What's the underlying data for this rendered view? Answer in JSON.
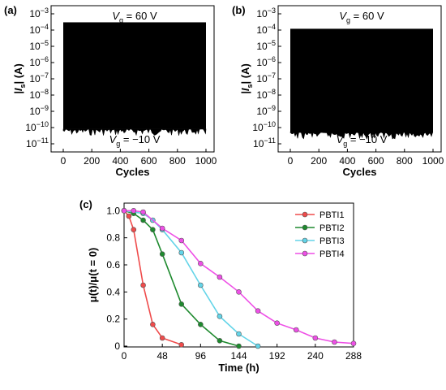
{
  "chart_data": [
    {
      "panel": "(a)",
      "type": "area",
      "xlabel": "Cycles",
      "ylabel_main": "|I",
      "ylabel_sub": "s",
      "ylabel_end": "| (A)",
      "xlim": [
        0,
        1000
      ],
      "x_ticks": [
        "0",
        "200",
        "400",
        "600",
        "800",
        "1000"
      ],
      "x_tick_values": [
        0,
        200,
        400,
        600,
        800,
        1000
      ],
      "y_scale": "log",
      "y_ticks_exp": [
        -11,
        -10,
        -9,
        -8,
        -7,
        -6,
        -5,
        -4,
        -3
      ],
      "y_ticks_base": "10",
      "on_current": 0.0003,
      "off_current": 8e-11,
      "color": "#000000",
      "ann_top": {
        "v": "V",
        "sub": "g",
        "text": " = 60 V"
      },
      "ann_bottom": {
        "v": "V",
        "sub": "g",
        "text": " = −10 V"
      }
    },
    {
      "panel": "(b)",
      "type": "area",
      "xlabel": "Cycles",
      "ylabel_main": "|I",
      "ylabel_sub": "s",
      "ylabel_end": "| (A)",
      "xlim": [
        0,
        1000
      ],
      "x_ticks": [
        "0",
        "200",
        "400",
        "600",
        "800",
        "1000"
      ],
      "x_tick_values": [
        0,
        200,
        400,
        600,
        800,
        1000
      ],
      "y_scale": "log",
      "y_ticks_exp": [
        -11,
        -10,
        -9,
        -8,
        -7,
        -6,
        -5,
        -4,
        -3
      ],
      "y_ticks_base": "10",
      "on_current": 0.00012,
      "off_current": 5e-11,
      "color": "#000000",
      "ann_top": {
        "v": "V",
        "sub": "g",
        "text": " = 60 V"
      },
      "ann_bottom": {
        "v": "V",
        "sub": "g",
        "text": " = −10 V"
      }
    },
    {
      "panel": "(c)",
      "type": "line",
      "xlabel": "Time (h)",
      "ylabel": "μ(t)/μ(t = 0)",
      "xlim": [
        0,
        288
      ],
      "ylim": [
        0,
        1.05
      ],
      "x_ticks": [
        "0",
        "48",
        "96",
        "144",
        "192",
        "240",
        "288"
      ],
      "x_tick_values": [
        0,
        48,
        96,
        144,
        192,
        240,
        288
      ],
      "y_ticks": [
        "0",
        "0.2",
        "0.4",
        "0.6",
        "0.8",
        "1.0"
      ],
      "y_tick_values": [
        0,
        0.2,
        0.4,
        0.6,
        0.8,
        1.0
      ],
      "legend_position": "top-right",
      "series": [
        {
          "name": "PBTI1",
          "color": "#ef4b4b",
          "x": [
            0,
            6,
            12,
            24,
            36,
            48,
            72
          ],
          "y": [
            1.0,
            0.96,
            0.86,
            0.45,
            0.16,
            0.06,
            0.01
          ]
        },
        {
          "name": "PBTI2",
          "color": "#1e8a2e",
          "x": [
            0,
            12,
            24,
            36,
            48,
            72,
            96,
            120,
            144
          ],
          "y": [
            1.0,
            0.98,
            0.93,
            0.86,
            0.68,
            0.31,
            0.16,
            0.04,
            0.0
          ]
        },
        {
          "name": "PBTI3",
          "color": "#63d4e8",
          "x": [
            0,
            24,
            36,
            48,
            72,
            96,
            120,
            144,
            168
          ],
          "y": [
            1.0,
            0.98,
            0.93,
            0.86,
            0.69,
            0.45,
            0.22,
            0.09,
            0.0
          ]
        },
        {
          "name": "PBTI4",
          "color": "#ee4fe6",
          "x": [
            0,
            12,
            24,
            48,
            72,
            96,
            120,
            144,
            168,
            192,
            216,
            240,
            264,
            288
          ],
          "y": [
            1.0,
            1.0,
            0.99,
            0.87,
            0.78,
            0.61,
            0.51,
            0.4,
            0.26,
            0.17,
            0.12,
            0.06,
            0.03,
            0.02
          ]
        }
      ]
    }
  ]
}
